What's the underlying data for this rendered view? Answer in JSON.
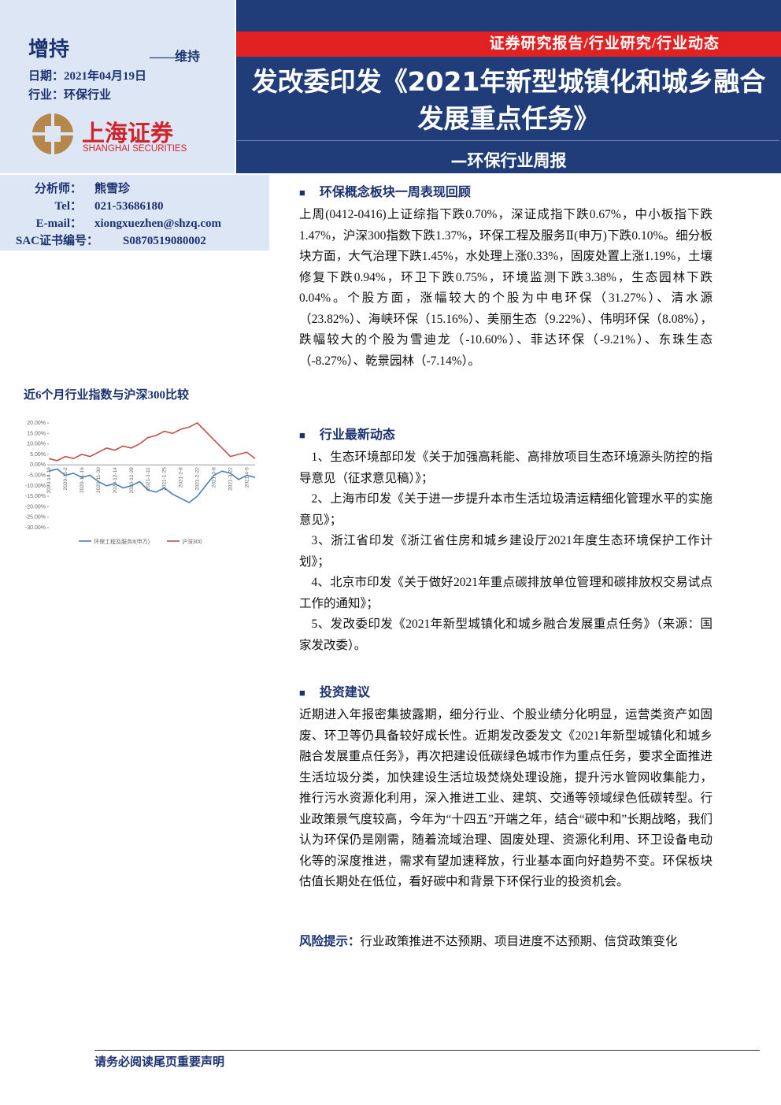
{
  "header": {
    "rating": "增持",
    "rating_note": "——维持",
    "date_label": "日期：",
    "date": "2021年04月19日",
    "industry_label": "行业：",
    "industry": "环保行业",
    "logo_cn": "上海证券",
    "logo_en": "SHANGHAI SECURITIES",
    "category": "证券研究报告/行业研究/行业动态",
    "title": "发改委印发《2021年新型城镇化和城乡融合发展重点任务》",
    "subtitle": "—环保行业周报"
  },
  "analyst": [
    [
      "分析师：",
      "熊雪珍"
    ],
    [
      "Tel：",
      "021-53686180"
    ],
    [
      "E-mail：",
      "xiongxuezhen@shzq.com"
    ],
    [
      "SAC证书编号：",
      "S0870519080002"
    ]
  ],
  "chart": {
    "type": "line",
    "title": "近6个月行业指数与沪深300比较",
    "categories": [
      "2020-10-19",
      null,
      "2020-11-2",
      null,
      "2020-11-16",
      null,
      "2020-11-30",
      null,
      "2020-12-14",
      null,
      "2020-12-28",
      null,
      "2021-1-11",
      null,
      "2021-1-25",
      null,
      "2021-2-8",
      null,
      "2021-2-22",
      null,
      "2021-3-8",
      null,
      "2021-3-22",
      null,
      "2021-4-5",
      null
    ],
    "series": [
      {
        "name": "环保工程及服务Ⅱ(申万)",
        "color": "#4a7ebb",
        "values": [
          -3,
          -2,
          -5,
          -4,
          -6,
          -5,
          -8,
          -10,
          -9,
          -11,
          -10,
          -8,
          -12,
          -13,
          -11,
          -14,
          -16,
          -18,
          -15,
          -10,
          -5,
          -3,
          -4,
          -7,
          -5,
          -6
        ]
      },
      {
        "name": "沪深300",
        "color": "#c0504d",
        "values": [
          3,
          2,
          4,
          3,
          5,
          4,
          6,
          8,
          7,
          9,
          8,
          10,
          13,
          14,
          16,
          15,
          17,
          18,
          20,
          16,
          12,
          8,
          4,
          5,
          6,
          3
        ]
      }
    ],
    "ylim": [
      -30,
      20
    ],
    "yticks": [
      {
        "value": 20,
        "label": "20.00%"
      },
      {
        "value": 15,
        "label": "15.00%"
      },
      {
        "value": 10,
        "label": "10.00%"
      },
      {
        "value": 5,
        "label": "5.00%"
      },
      {
        "value": 0,
        "label": "0.00%"
      },
      {
        "value": -5,
        "label": "-5.00%"
      },
      {
        "value": -10,
        "label": "-10.00%"
      },
      {
        "value": -15,
        "label": "-15.00%"
      },
      {
        "value": -20,
        "label": "-20.00%"
      },
      {
        "value": -25,
        "label": "-25.00%"
      },
      {
        "value": -30,
        "label": "-30.00%"
      }
    ]
  },
  "sections": [
    {
      "heading": "环保概念板块一周表现回顾",
      "paragraphs": [
        "上周(0412-0416)上证综指下跌0.70%，深证成指下跌0.67%，中小板指下跌1.47%，沪深300指数下跌1.37%，环保工程及服务Ⅱ(申万)下跌0.10%。细分板块方面，大气治理下跌1.45%，水处理上涨0.33%，固废处置上涨1.19%，土壤修复下跌0.94%，环卫下跌0.75%，环境监测下跌3.38%，生态园林下跌0.04%。个股方面，涨幅较大的个股为中电环保（31.27%）、清水源（23.82%）、海峡环保（15.16%）、美丽生态（9.22%）、伟明环保（8.08%），跌幅较大的个股为雪迪龙（-10.60%）、菲达环保（-9.21%）、东珠生态（-8.27%）、乾景园林（-7.14%）。"
      ]
    },
    {
      "heading": "行业最新动态",
      "paragraphs": [
        "1、生态环境部印发《关于加强高耗能、高排放项目生态环境源头防控的指导意见（征求意见稿）》；",
        "2、上海市印发《关于进一步提升本市生活垃圾清运精细化管理水平的实施意见》；",
        "3、浙江省印发《浙江省住房和城乡建设厅2021年度生态环境保护工作计划》；",
        "4、北京市印发《关于做好2021年重点碳排放单位管理和碳排放权交易试点工作的通知》；",
        "5、发改委印发《2021年新型城镇化和城乡融合发展重点任务》（来源：国家发改委）。"
      ]
    },
    {
      "heading": "投资建议",
      "paragraphs": [
        "近期进入年报密集披露期，细分行业、个股业绩分化明显，运营类资产如固废、环卫等仍具备较好成长性。近期发改委发文《2021年新型城镇化和城乡融合发展重点任务》，再次把建设低碳绿色城市作为重点任务，要求全面推进生活垃圾分类，加快建设生活垃圾焚烧处理设施，提升污水管网收集能力，推行污水资源化利用，深入推进工业、建筑、交通等领域绿色低碳转型。行业政策景气度较高，今年为“十四五”开端之年，结合“碳中和”长期战略，我们认为环保仍是刚需，随着流域治理、固废处理、资源化利用、环卫设备电动化等的深度推进，需求有望加速释放，行业基本面向好趋势不变。环保板块估值长期处在低位，看好碳中和背景下环保行业的投资机会。"
      ]
    }
  ],
  "risk": {
    "label": "风险提示：",
    "text": "行业政策推进不达预期、项目进度不达预期、信贷政策变化"
  },
  "footer": "请务必阅读尾页重要声明"
}
